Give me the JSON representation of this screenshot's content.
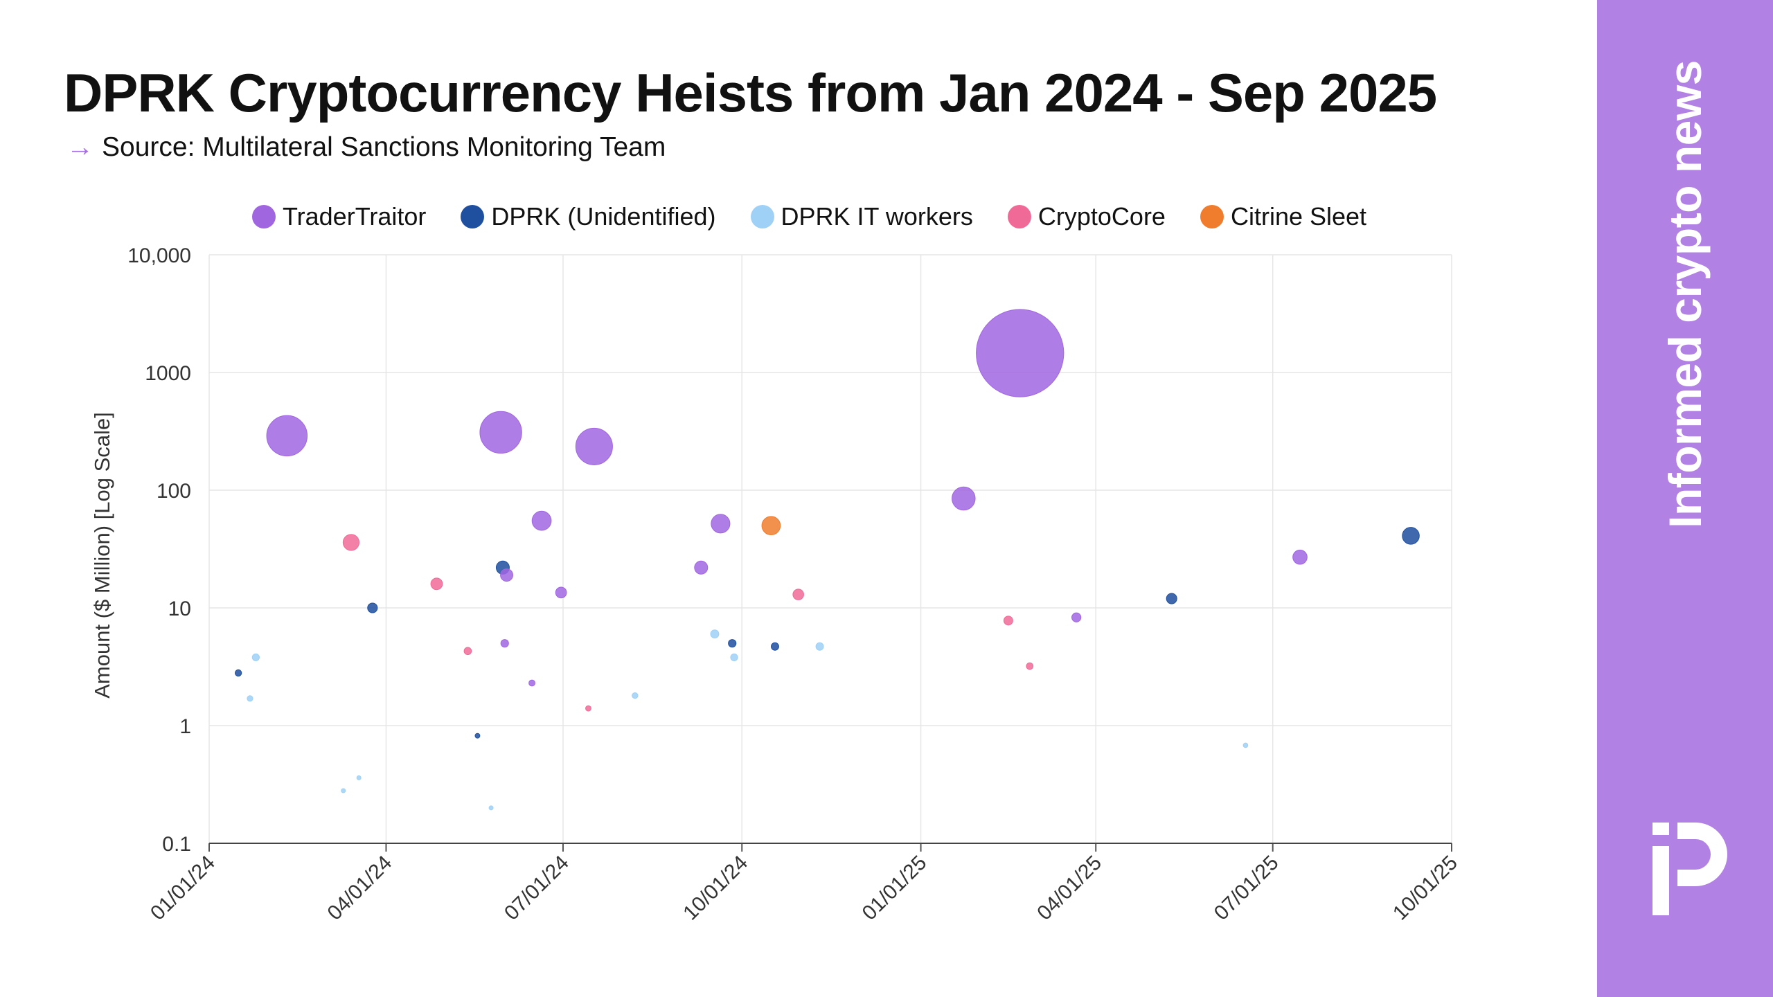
{
  "title": "DPRK Cryptocurrency Heists from Jan 2024 - Sep 2025",
  "source": "Source: Multilateral Sanctions Monitoring Team",
  "source_arrow": "→",
  "brand": "Informed crypto news",
  "colors": {
    "accent": "#b181e4",
    "TraderTraitor": "#a066e0",
    "DPRK (Unidentified)": "#1f4f9f",
    "DPRK IT workers": "#9fd0f5",
    "CryptoCore": "#f06a98",
    "Citrine Sleet": "#f07d2e"
  },
  "chart_data": {
    "type": "scatter",
    "title": "DPRK Cryptocurrency Heists from Jan 2024 - Sep 2025",
    "xlabel": "",
    "ylabel": "Amount ($ Million) [Log Scale]",
    "y_scale": "log",
    "ylim": [
      0.1,
      10000
    ],
    "xlim": [
      "2024-01-01",
      "2025-10-01"
    ],
    "y_ticks": [
      {
        "value": 0.1,
        "label": "0.1"
      },
      {
        "value": 1,
        "label": "1"
      },
      {
        "value": 10,
        "label": "10"
      },
      {
        "value": 100,
        "label": "100"
      },
      {
        "value": 1000,
        "label": "1000"
      },
      {
        "value": 10000,
        "label": "10,000"
      }
    ],
    "x_ticks": [
      {
        "value": "2024-01-01",
        "label": "01/01/24"
      },
      {
        "value": "2024-04-01",
        "label": "04/01/24"
      },
      {
        "value": "2024-07-01",
        "label": "07/01/24"
      },
      {
        "value": "2024-10-01",
        "label": "10/01/24"
      },
      {
        "value": "2025-01-01",
        "label": "01/01/25"
      },
      {
        "value": "2025-04-01",
        "label": "04/01/25"
      },
      {
        "value": "2025-07-01",
        "label": "07/01/25"
      },
      {
        "value": "2025-10-01",
        "label": "10/01/25"
      }
    ],
    "grid": true,
    "legend_position": "top",
    "bubble_size": "amount",
    "series": [
      {
        "name": "TraderTraitor",
        "color": "#a066e0",
        "points": [
          {
            "date": "2024-02-10",
            "value": 290
          },
          {
            "date": "2024-05-30",
            "value": 310
          },
          {
            "date": "2024-06-20",
            "value": 55
          },
          {
            "date": "2024-06-01",
            "value": 5
          },
          {
            "date": "2024-06-02",
            "value": 19
          },
          {
            "date": "2024-06-15",
            "value": 2.3
          },
          {
            "date": "2024-06-30",
            "value": 13.5
          },
          {
            "date": "2024-07-17",
            "value": 235
          },
          {
            "date": "2024-09-10",
            "value": 22
          },
          {
            "date": "2024-09-20",
            "value": 52
          },
          {
            "date": "2025-01-23",
            "value": 85
          },
          {
            "date": "2025-02-21",
            "value": 1460
          },
          {
            "date": "2025-03-22",
            "value": 8.3
          },
          {
            "date": "2025-07-15",
            "value": 27
          }
        ]
      },
      {
        "name": "DPRK (Unidentified)",
        "color": "#1f4f9f",
        "points": [
          {
            "date": "2024-01-16",
            "value": 2.8
          },
          {
            "date": "2024-03-25",
            "value": 10
          },
          {
            "date": "2024-05-18",
            "value": 0.82
          },
          {
            "date": "2024-05-31",
            "value": 22
          },
          {
            "date": "2024-09-26",
            "value": 5
          },
          {
            "date": "2024-10-18",
            "value": 4.7
          },
          {
            "date": "2025-05-10",
            "value": 12
          },
          {
            "date": "2025-09-10",
            "value": 41
          }
        ]
      },
      {
        "name": "DPRK IT workers",
        "color": "#9fd0f5",
        "points": [
          {
            "date": "2024-01-22",
            "value": 1.7
          },
          {
            "date": "2024-01-25",
            "value": 3.8
          },
          {
            "date": "2024-03-10",
            "value": 0.28
          },
          {
            "date": "2024-03-18",
            "value": 0.36
          },
          {
            "date": "2024-05-25",
            "value": 0.2
          },
          {
            "date": "2024-08-07",
            "value": 1.8
          },
          {
            "date": "2024-09-17",
            "value": 6
          },
          {
            "date": "2024-09-27",
            "value": 3.8
          },
          {
            "date": "2024-11-10",
            "value": 4.7
          },
          {
            "date": "2025-06-17",
            "value": 0.68
          }
        ]
      },
      {
        "name": "CryptoCore",
        "color": "#f06a98",
        "points": [
          {
            "date": "2024-03-14",
            "value": 36
          },
          {
            "date": "2024-04-27",
            "value": 16
          },
          {
            "date": "2024-05-13",
            "value": 4.3
          },
          {
            "date": "2024-07-14",
            "value": 1.4
          },
          {
            "date": "2024-10-30",
            "value": 13
          },
          {
            "date": "2025-02-15",
            "value": 7.8
          },
          {
            "date": "2025-02-26",
            "value": 3.2
          }
        ]
      },
      {
        "name": "Citrine Sleet",
        "color": "#f07d2e",
        "points": [
          {
            "date": "2024-10-16",
            "value": 50
          }
        ]
      }
    ]
  }
}
